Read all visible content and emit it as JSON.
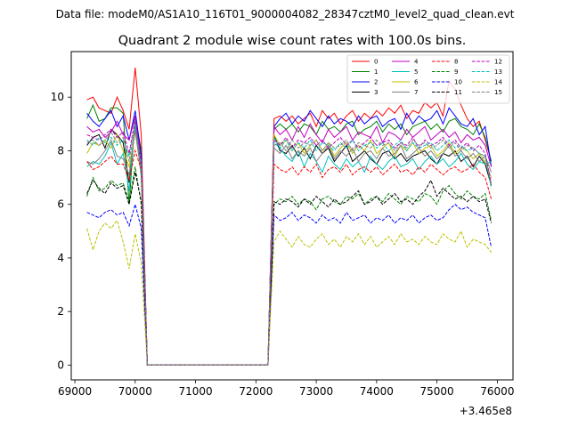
{
  "chart_data": {
    "type": "line",
    "suptitle": "Data file: modeM0/AS1A10_116T01_9000004082_28347cztM0_level2_quad_clean.evt",
    "title": "Quadrant 2 module wise count rates with 100.0s bins.",
    "xlabel": "",
    "ylabel": "",
    "x_offset_label": "+3.465e8",
    "xlim": [
      68940,
      76260
    ],
    "ylim": [
      -0.55,
      11.7
    ],
    "x_ticks": [
      69000,
      70000,
      71000,
      72000,
      73000,
      74000,
      75000,
      76000
    ],
    "x_tick_labels": [
      "69000",
      "70000",
      "71000",
      "72000",
      "73000",
      "74000",
      "75000",
      "76000"
    ],
    "y_ticks": [
      0,
      2,
      4,
      6,
      8,
      10
    ],
    "y_tick_labels": [
      "0",
      "2",
      "4",
      "6",
      "8",
      "10"
    ],
    "grid": false,
    "legend_position": "top-right",
    "segments": {
      "seg1": {
        "x_start": 69200,
        "step": 100,
        "count": 10
      },
      "zero_plateau": {
        "x": [
          70200,
          72200
        ],
        "y": 0
      },
      "seg2": {
        "x_start": 72300,
        "step": 100,
        "count": 37
      }
    },
    "series": [
      {
        "name": "0",
        "color": "#ff0000",
        "dash": "solid",
        "seg1": [
          9.9,
          10.0,
          9.6,
          9.5,
          9.4,
          10.0,
          9.5,
          8.8,
          11.1,
          8.6
        ],
        "seg2": [
          9.2,
          9.3,
          9.1,
          9.3,
          9.0,
          9.2,
          9.4,
          8.9,
          9.5,
          9.2,
          9.4,
          9.0,
          9.3,
          9.5,
          9.1,
          9.4,
          9.2,
          9.5,
          9.3,
          9.6,
          9.4,
          9.7,
          9.2,
          9.5,
          9.4,
          9.8,
          9.6,
          9.8,
          9.3,
          10.6,
          10.3,
          9.7,
          9.2,
          8.9,
          9.1,
          8.4,
          7.6
        ]
      },
      {
        "name": "1",
        "color": "#008000",
        "dash": "solid",
        "seg1": [
          9.2,
          9.7,
          9.1,
          9.2,
          9.6,
          9.6,
          9.4,
          6.0,
          9.3,
          8.0
        ],
        "seg2": [
          8.8,
          9.0,
          8.8,
          9.0,
          8.7,
          9.0,
          8.9,
          8.6,
          9.1,
          8.8,
          8.9,
          8.7,
          9.0,
          9.1,
          8.6,
          8.8,
          8.9,
          9.1,
          8.7,
          9.0,
          8.8,
          9.0,
          8.6,
          8.9,
          9.0,
          9.1,
          8.8,
          9.0,
          8.7,
          9.1,
          9.2,
          8.9,
          8.8,
          8.6,
          9.0,
          8.5,
          7.6
        ]
      },
      {
        "name": "2",
        "color": "#0000ff",
        "dash": "solid",
        "seg1": [
          9.4,
          9.1,
          8.9,
          9.2,
          9.5,
          8.9,
          9.3,
          8.4,
          9.5,
          7.8
        ],
        "seg2": [
          8.9,
          9.2,
          9.4,
          9.0,
          9.3,
          9.1,
          9.5,
          9.2,
          8.9,
          9.3,
          9.0,
          9.2,
          9.1,
          8.9,
          9.3,
          9.0,
          9.2,
          9.3,
          8.9,
          9.1,
          9.2,
          8.8,
          9.4,
          9.0,
          9.3,
          9.1,
          9.2,
          9.5,
          9.0,
          9.6,
          9.3,
          9.0,
          8.9,
          9.2,
          8.6,
          8.9,
          7.4
        ]
      },
      {
        "name": "3",
        "color": "#000000",
        "dash": "solid",
        "seg1": [
          8.2,
          8.5,
          8.6,
          8.1,
          8.8,
          8.6,
          8.3,
          6.8,
          9.0,
          7.4
        ],
        "seg2": [
          8.6,
          8.0,
          7.9,
          8.2,
          7.8,
          8.1,
          7.7,
          8.2,
          7.9,
          8.1,
          7.6,
          7.9,
          8.2,
          7.6,
          7.8,
          8.0,
          7.7,
          7.5,
          7.9,
          8.0,
          7.7,
          7.9,
          7.6,
          7.8,
          7.9,
          8.0,
          7.7,
          7.5,
          7.9,
          7.8,
          8.0,
          7.6,
          7.8,
          7.4,
          7.8,
          7.5,
          6.7
        ]
      },
      {
        "name": "4",
        "color": "#bf00bf",
        "dash": "solid",
        "seg1": [
          8.9,
          8.7,
          8.8,
          8.5,
          8.7,
          9.1,
          8.6,
          8.4,
          9.3,
          7.6
        ],
        "seg2": [
          8.9,
          8.6,
          8.8,
          8.4,
          8.9,
          8.5,
          9.0,
          8.6,
          8.3,
          8.8,
          8.5,
          8.7,
          8.9,
          8.4,
          8.7,
          8.6,
          8.5,
          8.9,
          8.3,
          8.7,
          8.6,
          8.4,
          8.8,
          8.5,
          8.7,
          8.9,
          8.4,
          8.6,
          8.8,
          8.5,
          8.7,
          8.3,
          8.6,
          8.4,
          8.5,
          8.2,
          7.4
        ]
      },
      {
        "name": "5",
        "color": "#00bfbf",
        "dash": "solid",
        "seg1": [
          7.4,
          7.6,
          7.5,
          7.8,
          8.3,
          7.5,
          7.9,
          6.5,
          9.2,
          7.0
        ],
        "seg2": [
          8.5,
          8.1,
          7.8,
          7.6,
          8.0,
          7.4,
          7.9,
          7.6,
          7.2,
          7.8,
          7.5,
          7.3,
          7.7,
          7.4,
          7.6,
          7.2,
          7.8,
          7.5,
          7.3,
          7.6,
          7.8,
          7.4,
          7.5,
          7.7,
          7.3,
          7.6,
          7.8,
          7.5,
          7.7,
          7.4,
          7.6,
          7.9,
          7.5,
          7.3,
          7.6,
          7.5,
          7.6
        ]
      },
      {
        "name": "6",
        "color": "#bfbf00",
        "dash": "solid",
        "seg1": [
          7.9,
          8.3,
          8.2,
          8.4,
          8.1,
          8.6,
          8.0,
          7.4,
          8.7,
          7.2
        ],
        "seg2": [
          8.6,
          8.2,
          8.4,
          8.0,
          8.3,
          7.9,
          8.2,
          8.4,
          8.0,
          8.3,
          7.8,
          8.1,
          8.3,
          7.9,
          8.2,
          8.0,
          8.4,
          7.9,
          8.1,
          8.3,
          7.8,
          8.2,
          8.0,
          8.3,
          7.9,
          8.1,
          8.2,
          7.8,
          8.0,
          8.3,
          7.9,
          8.1,
          8.0,
          7.7,
          7.9,
          7.6,
          7.0
        ]
      },
      {
        "name": "7",
        "color": "#808080",
        "dash": "solid",
        "seg1": [
          7.6,
          7.5,
          7.7,
          8.0,
          8.4,
          7.8,
          7.7,
          7.1,
          8.8,
          7.1
        ],
        "seg2": [
          8.1,
          7.9,
          8.2,
          7.7,
          8.0,
          7.8,
          8.1,
          7.6,
          7.9,
          8.2,
          7.7,
          8.0,
          7.8,
          8.1,
          7.6,
          7.9,
          8.0,
          7.7,
          8.1,
          7.8,
          7.9,
          8.2,
          7.7,
          7.9,
          8.1,
          7.8,
          8.0,
          7.7,
          7.9,
          8.2,
          7.8,
          8.0,
          7.7,
          7.9,
          7.6,
          7.8,
          7.2
        ]
      },
      {
        "name": "8",
        "color": "#ff0000",
        "dash": "dashed",
        "seg1": [
          7.6,
          7.3,
          7.4,
          7.6,
          7.8,
          7.5,
          7.5,
          6.9,
          8.0,
          7.3
        ],
        "seg2": [
          7.5,
          7.3,
          7.2,
          7.4,
          7.1,
          7.4,
          7.2,
          7.5,
          7.0,
          7.3,
          7.4,
          7.2,
          7.5,
          7.1,
          7.3,
          7.4,
          7.2,
          7.4,
          7.1,
          7.3,
          7.5,
          7.2,
          7.3,
          7.1,
          7.4,
          7.2,
          7.5,
          7.3,
          7.1,
          7.3,
          7.4,
          7.2,
          7.3,
          7.5,
          7.2,
          7.0,
          6.2
        ]
      },
      {
        "name": "9",
        "color": "#008000",
        "dash": "dashed",
        "seg1": [
          6.3,
          7.0,
          6.5,
          6.6,
          6.9,
          6.7,
          6.8,
          6.1,
          7.4,
          6.0
        ],
        "seg2": [
          6.0,
          6.2,
          6.1,
          6.3,
          6.0,
          6.2,
          6.1,
          5.8,
          6.2,
          6.3,
          6.1,
          6.0,
          6.3,
          6.2,
          6.4,
          6.0,
          6.2,
          6.3,
          6.1,
          6.4,
          6.2,
          6.0,
          6.3,
          6.2,
          6.1,
          6.4,
          6.3,
          6.0,
          6.5,
          6.7,
          6.4,
          6.2,
          6.5,
          6.3,
          6.2,
          6.4,
          5.4
        ]
      },
      {
        "name": "10",
        "color": "#0000ff",
        "dash": "dashed",
        "seg1": [
          5.7,
          5.6,
          5.5,
          5.7,
          5.8,
          5.6,
          5.7,
          5.2,
          6.0,
          5.1
        ],
        "seg2": [
          5.6,
          5.4,
          5.5,
          5.7,
          5.4,
          5.6,
          5.5,
          5.3,
          5.6,
          5.4,
          5.5,
          5.3,
          5.7,
          5.4,
          5.5,
          5.6,
          5.3,
          5.5,
          5.4,
          5.6,
          5.3,
          5.5,
          5.4,
          5.6,
          5.3,
          5.5,
          5.6,
          5.4,
          5.5,
          5.8,
          6.0,
          5.8,
          5.9,
          5.7,
          5.6,
          5.5,
          4.4
        ]
      },
      {
        "name": "11",
        "color": "#000000",
        "dash": "dashed",
        "seg1": [
          6.4,
          6.9,
          6.6,
          6.4,
          6.8,
          6.6,
          6.7,
          6.0,
          7.2,
          6.1
        ],
        "seg2": [
          6.1,
          6.0,
          6.2,
          6.1,
          5.9,
          6.2,
          6.0,
          6.3,
          6.1,
          5.9,
          6.2,
          6.0,
          6.1,
          6.3,
          6.5,
          6.0,
          6.1,
          6.3,
          6.0,
          6.2,
          6.4,
          6.1,
          6.2,
          6.0,
          6.3,
          6.5,
          6.9,
          6.3,
          6.6,
          6.4,
          6.2,
          6.3,
          6.1,
          6.3,
          6.1,
          6.2,
          5.3
        ]
      },
      {
        "name": "12",
        "color": "#bf00bf",
        "dash": "dashed",
        "seg1": [
          8.6,
          8.5,
          8.4,
          8.6,
          8.8,
          8.5,
          8.7,
          7.9,
          9.2,
          7.5
        ],
        "seg2": [
          8.4,
          8.2,
          8.5,
          8.1,
          8.4,
          8.3,
          8.5,
          8.2,
          8.4,
          8.1,
          8.3,
          8.5,
          8.2,
          8.4,
          8.1,
          8.3,
          8.5,
          8.2,
          8.3,
          8.4,
          8.1,
          8.3,
          8.2,
          8.5,
          8.1,
          8.4,
          8.2,
          8.3,
          8.5,
          8.2,
          8.4,
          8.1,
          8.3,
          8.0,
          8.2,
          7.9,
          6.8
        ]
      },
      {
        "name": "13",
        "color": "#00bfbf",
        "dash": "dashed",
        "seg1": [
          8.4,
          8.2,
          8.5,
          8.3,
          8.5,
          8.2,
          8.4,
          7.8,
          8.9,
          7.5
        ],
        "seg2": [
          8.3,
          8.1,
          8.4,
          8.0,
          8.3,
          8.1,
          8.4,
          8.0,
          8.3,
          8.2,
          8.0,
          8.3,
          8.1,
          8.4,
          8.0,
          8.2,
          8.3,
          8.1,
          8.3,
          8.0,
          8.2,
          8.4,
          8.0,
          8.3,
          8.1,
          8.2,
          8.3,
          8.0,
          8.2,
          8.4,
          8.1,
          8.2,
          8.0,
          8.1,
          7.9,
          7.8,
          6.6
        ]
      },
      {
        "name": "14",
        "color": "#bfbf00",
        "dash": "dashed",
        "seg1": [
          5.1,
          4.3,
          5.0,
          5.3,
          5.1,
          5.4,
          4.6,
          3.6,
          4.9,
          3.8
        ],
        "seg2": [
          4.6,
          5.0,
          4.7,
          4.4,
          4.8,
          4.5,
          4.4,
          4.7,
          4.9,
          4.5,
          4.7,
          4.4,
          4.8,
          4.6,
          4.9,
          4.5,
          4.8,
          4.4,
          4.6,
          4.8,
          4.5,
          4.9,
          4.6,
          4.7,
          4.5,
          4.8,
          4.6,
          4.5,
          4.9,
          4.7,
          4.6,
          5.0,
          4.4,
          4.7,
          4.6,
          4.5,
          4.2
        ]
      },
      {
        "name": "15",
        "color": "#808080",
        "dash": "dashed",
        "seg1": [
          8.3,
          8.4,
          8.2,
          8.4,
          8.7,
          8.3,
          8.5,
          7.6,
          9.0,
          7.3
        ],
        "seg2": [
          8.2,
          8.3,
          8.0,
          8.4,
          8.1,
          8.3,
          8.2,
          8.4,
          8.0,
          8.3,
          8.1,
          8.2,
          8.4,
          8.0,
          8.3,
          8.2,
          8.1,
          8.4,
          8.2,
          8.3,
          8.0,
          8.3,
          8.1,
          8.4,
          8.2,
          8.3,
          8.1,
          8.2,
          8.4,
          8.1,
          8.3,
          8.0,
          8.2,
          8.1,
          7.9,
          7.8,
          6.7
        ]
      }
    ]
  }
}
